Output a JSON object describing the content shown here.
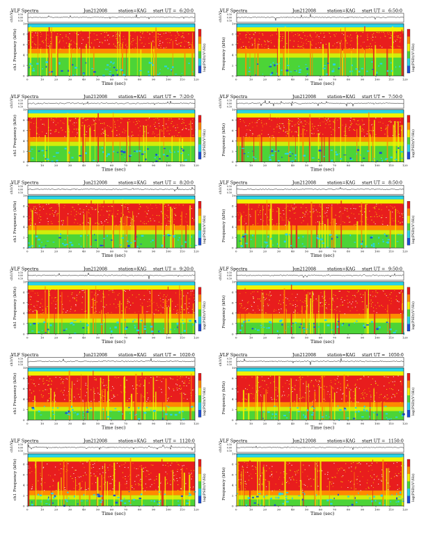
{
  "page_title": "VLF Spectra grid",
  "common": {
    "header_left": "VLF Spectra",
    "station": "station=KAG",
    "ut_prefix": "start UT =",
    "ylabel_top": "ch1(V)",
    "ylabel_freq": "ch1 Frequency (kHz)",
    "ylabel_freq_right": "Frequency (kHz)",
    "xlabel": "Time (sec)",
    "colorbar_label": "log(PSD)(V²/Hz)",
    "top_ticks": [
      "0.10",
      "0.00",
      "0.10"
    ],
    "freq_ticks": [
      "0",
      "2",
      "4",
      "6",
      "8",
      "10"
    ],
    "time_ticks_left": [
      "0",
      "10",
      "20",
      "30",
      "40",
      "50",
      "60",
      "70",
      "80",
      "90",
      "100",
      "110",
      "120"
    ],
    "time_ticks_right": [
      "0",
      "10",
      "20",
      "30",
      "40",
      "50",
      "60",
      "70",
      "80",
      "90",
      "100",
      "110",
      "120"
    ],
    "colors": {
      "red": "#e81d1d",
      "orange": "#ff8a00",
      "yellow": "#f2f200",
      "green": "#4cd437",
      "cyan": "#29d1e6",
      "blue": "#1d4fd6",
      "white": "#ffffff"
    }
  },
  "chart_data": [
    {
      "type": "heatmap",
      "date": "Jun212008",
      "start_ut": "6:20:0",
      "x_range": [
        0,
        120
      ],
      "y_range": [
        0,
        10
      ],
      "x_unit": "sec",
      "y_unit": "kHz"
    },
    {
      "type": "heatmap",
      "date": "Jun212008",
      "start_ut": "6:50:0",
      "x_range": [
        0,
        120
      ],
      "y_range": [
        0,
        10
      ],
      "x_unit": "sec",
      "y_unit": "kHz"
    },
    {
      "type": "heatmap",
      "date": "Jun212008",
      "start_ut": "7:20:0",
      "x_range": [
        0,
        120
      ],
      "y_range": [
        0,
        10
      ],
      "x_unit": "sec",
      "y_unit": "kHz"
    },
    {
      "type": "heatmap",
      "date": "Jun212008",
      "start_ut": "7:50:0",
      "x_range": [
        0,
        120
      ],
      "y_range": [
        0,
        10
      ],
      "x_unit": "sec",
      "y_unit": "kHz"
    },
    {
      "type": "heatmap",
      "date": "Jun212008",
      "start_ut": "8:20:0",
      "x_range": [
        0,
        120
      ],
      "y_range": [
        0,
        10
      ],
      "x_unit": "sec",
      "y_unit": "kHz"
    },
    {
      "type": "heatmap",
      "date": "Jun212008",
      "start_ut": "8:50:0",
      "x_range": [
        0,
        120
      ],
      "y_range": [
        0,
        10
      ],
      "x_unit": "sec",
      "y_unit": "kHz"
    },
    {
      "type": "heatmap",
      "date": "Jun212008",
      "start_ut": "9:20:0",
      "x_range": [
        0,
        120
      ],
      "y_range": [
        0,
        10
      ],
      "x_unit": "sec",
      "y_unit": "kHz"
    },
    {
      "type": "heatmap",
      "date": "Jun212008",
      "start_ut": "9:50:0",
      "x_range": [
        0,
        120
      ],
      "y_range": [
        0,
        10
      ],
      "x_unit": "sec",
      "y_unit": "kHz"
    },
    {
      "type": "heatmap",
      "date": "Jun212008",
      "start_ut": "1020:0",
      "x_range": [
        0,
        120
      ],
      "y_range": [
        0,
        10
      ],
      "x_unit": "sec",
      "y_unit": "kHz"
    },
    {
      "type": "heatmap",
      "date": "Jun212008",
      "start_ut": "1050:0",
      "x_range": [
        0,
        120
      ],
      "y_range": [
        0,
        10
      ],
      "x_unit": "sec",
      "y_unit": "kHz"
    },
    {
      "type": "heatmap",
      "date": "Jun212008",
      "start_ut": "1120:0",
      "x_range": [
        0,
        120
      ],
      "y_range": [
        0,
        10
      ],
      "x_unit": "sec",
      "y_unit": "kHz"
    },
    {
      "type": "heatmap",
      "date": "Jun212008",
      "start_ut": "1150:0",
      "x_range": [
        0,
        120
      ],
      "y_range": [
        0,
        10
      ],
      "x_unit": "sec",
      "y_unit": "kHz"
    }
  ]
}
